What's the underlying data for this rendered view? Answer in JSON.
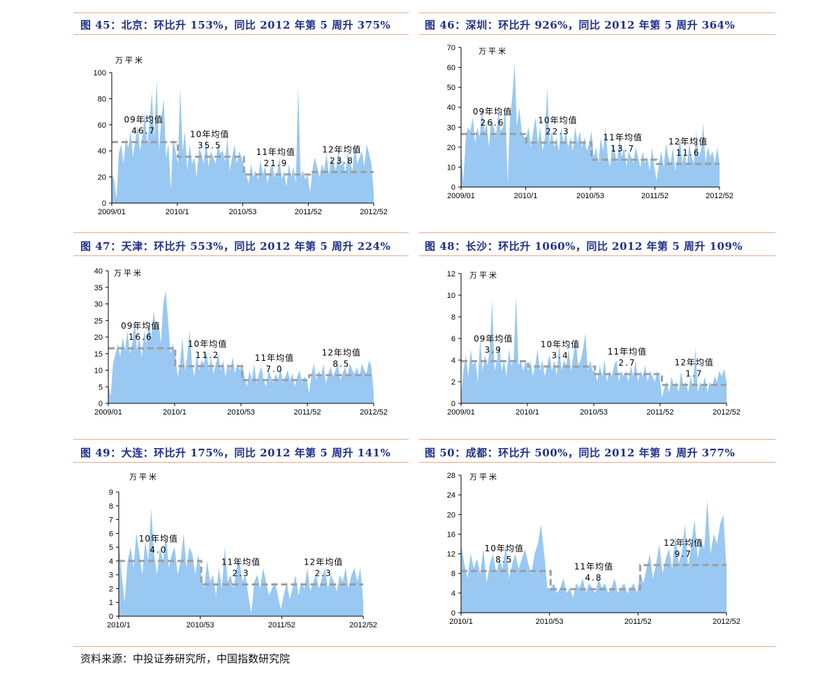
{
  "source": "资料来源：中投证券研究所，中国指数研究院",
  "panels": [
    {
      "title": "图 45：北京：环比升 153%，同比 2012 年第 5 周升 375%"
    },
    {
      "title": "图 46：深圳：环比升 926%，同比 2012 年第 5 周升 364%"
    },
    {
      "title": "图 47：天津：环比升 553%，同比 2012 年第 5 周升 224%"
    },
    {
      "title": "图 48：长沙：环比升 1060%，同比 2012 年第 5 周升 109%"
    },
    {
      "title": "图 49：大连：环比升 175%，同比 2012 年第 5 周升 141%"
    },
    {
      "title": "图 50：成都：环比升 500%，同比 2012 年第 5 周升 377%"
    }
  ],
  "chart_data": [
    {
      "type": "area",
      "ylabel": "万平米",
      "ylim": [
        0,
        100
      ],
      "yticks": [
        0,
        20,
        40,
        60,
        80,
        100
      ],
      "xtick_labels": [
        "2009/01",
        "2010/1",
        "2010/53",
        "2011/52",
        "2012/52"
      ],
      "area_color": "#99c8f2",
      "avg_color": "#9e9e9e",
      "segments": [
        {
          "label": "09年均值",
          "value": 46.7,
          "values": [
            22,
            18,
            3,
            38,
            45,
            30,
            50,
            42,
            55,
            35,
            48,
            60,
            40,
            52,
            70,
            45,
            62,
            85,
            50,
            95,
            40,
            65,
            80,
            35,
            45,
            10,
            50,
            40
          ],
          "label_val": "46.7"
        },
        {
          "label": "10年均值",
          "value": 35.5,
          "values": [
            30,
            88,
            40,
            55,
            25,
            45,
            30,
            35,
            20,
            42,
            38,
            30,
            50,
            28,
            40,
            35,
            30,
            45,
            38,
            40,
            32,
            50,
            25,
            35,
            45,
            30,
            40,
            35
          ],
          "label_val": "35.5"
        },
        {
          "label": "11年均值",
          "value": 21.9,
          "values": [
            28,
            22,
            15,
            30,
            20,
            25,
            18,
            33,
            22,
            28,
            15,
            25,
            30,
            20,
            22,
            35,
            18,
            25,
            12,
            30,
            20,
            28,
            15,
            90,
            20,
            25,
            18,
            22
          ],
          "label_val": "21.9"
        },
        {
          "label": "12年均值",
          "value": 23.8,
          "values": [
            8,
            25,
            35,
            28,
            20,
            30,
            25,
            38,
            22,
            35,
            30,
            25,
            40,
            28,
            33,
            22,
            38,
            30,
            25,
            45,
            30,
            35,
            40,
            28,
            45,
            38,
            30,
            8
          ],
          "label_val": "23.8"
        }
      ]
    },
    {
      "type": "area",
      "ylabel": "万平米",
      "ylim": [
        0,
        70
      ],
      "yticks": [
        0,
        10,
        20,
        30,
        40,
        50,
        60,
        70
      ],
      "xtick_labels": [
        "2009/01",
        "2010/1",
        "2010/53",
        "2011/52",
        "2012/52"
      ],
      "area_color": "#99c8f2",
      "avg_color": "#9e9e9e",
      "segments": [
        {
          "label": "09年均值",
          "value": 26.6,
          "values": [
            18,
            3,
            25,
            30,
            28,
            35,
            22,
            30,
            25,
            40,
            28,
            32,
            20,
            35,
            30,
            25,
            38,
            28,
            30,
            40,
            2,
            35,
            45,
            62,
            30,
            40,
            28,
            25
          ],
          "label_val": "26.6"
        },
        {
          "label": "10年均值",
          "value": 22.3,
          "values": [
            25,
            30,
            20,
            28,
            35,
            22,
            30,
            18,
            25,
            50,
            22,
            28,
            20,
            25,
            18,
            30,
            22,
            28,
            20,
            25,
            18,
            30,
            22,
            28,
            20,
            25,
            18,
            22
          ],
          "label_val": "22.3"
        },
        {
          "label": "11年均值",
          "value": 13.7,
          "values": [
            28,
            15,
            20,
            12,
            25,
            18,
            30,
            15,
            10,
            22,
            18,
            12,
            25,
            15,
            20,
            10,
            18,
            15,
            12,
            20,
            15,
            10,
            18,
            12,
            15,
            8,
            20,
            10
          ],
          "label_val": "13.7"
        },
        {
          "label": "12年均值",
          "value": 11.6,
          "values": [
            3,
            12,
            18,
            10,
            22,
            15,
            12,
            20,
            8,
            15,
            25,
            12,
            18,
            10,
            22,
            15,
            12,
            28,
            15,
            18,
            32,
            12,
            20,
            15,
            18,
            12,
            20,
            12
          ],
          "label_val": "11.6"
        }
      ]
    },
    {
      "type": "area",
      "ylabel": "万平米",
      "ylim": [
        0,
        40
      ],
      "yticks": [
        0,
        5,
        10,
        15,
        20,
        25,
        30,
        35,
        40
      ],
      "xtick_labels": [
        "2009/01",
        "2010/1",
        "2010/53",
        "2011/52",
        "2012/52"
      ],
      "area_color": "#99c8f2",
      "avg_color": "#9e9e9e",
      "segments": [
        {
          "label": "09年均值",
          "value": 16.6,
          "values": [
            6,
            2,
            12,
            15,
            18,
            14,
            20,
            16,
            22,
            15,
            18,
            25,
            16,
            20,
            14,
            22,
            18,
            25,
            20,
            28,
            22,
            25,
            18,
            30,
            34,
            25,
            15,
            18
          ],
          "label_val": "16.6"
        },
        {
          "label": "10年均值",
          "value": 11.2,
          "values": [
            15,
            8,
            12,
            20,
            10,
            14,
            22,
            12,
            8,
            15,
            10,
            13,
            12,
            16,
            10,
            14,
            9,
            12,
            15,
            10,
            13,
            8,
            12,
            10,
            14,
            9,
            12,
            10
          ],
          "label_val": "11.2"
        },
        {
          "label": "11年均值",
          "value": 7.0,
          "values": [
            12,
            8,
            5,
            10,
            7,
            12,
            6,
            9,
            11,
            7,
            5,
            10,
            8,
            6,
            9,
            7,
            11,
            6,
            8,
            10,
            7,
            9,
            5,
            8,
            10,
            6,
            8,
            7
          ],
          "label_val": "7.0"
        },
        {
          "label": "12年均值",
          "value": 8.5,
          "values": [
            3,
            9,
            12,
            7,
            10,
            8,
            12,
            6,
            9,
            11,
            8,
            10,
            12,
            7,
            9,
            11,
            8,
            12,
            10,
            9,
            11,
            8,
            12,
            10,
            9,
            13,
            11,
            3
          ],
          "label_val": "8.5"
        }
      ]
    },
    {
      "type": "area",
      "ylabel": "万平米",
      "ylim": [
        0,
        12
      ],
      "yticks": [
        0,
        2,
        4,
        6,
        8,
        10,
        12
      ],
      "xtick_labels": [
        "2009/01",
        "2010/1",
        "2010/53",
        "2011/52",
        "2012/52"
      ],
      "area_color": "#99c8f2",
      "avg_color": "#9e9e9e",
      "segments": [
        {
          "label": "09年均值",
          "value": 3.9,
          "values": [
            0.5,
            3,
            4.5,
            2.5,
            5,
            3.5,
            4,
            2,
            6,
            3,
            4.5,
            3.5,
            5,
            9.5,
            3,
            4,
            5.5,
            3,
            4,
            2.5,
            5,
            3.5,
            4,
            10,
            3.5,
            4,
            3,
            4
          ],
          "label_val": "3.9"
        },
        {
          "label": "10年均值",
          "value": 3.4,
          "values": [
            3,
            4,
            2.5,
            3.5,
            5,
            3,
            4,
            2.5,
            3.5,
            4.5,
            3,
            4,
            2.5,
            5.5,
            3,
            4,
            3.5,
            5,
            3,
            4.5,
            6,
            3.5,
            4,
            5,
            6.5,
            3,
            4,
            3
          ],
          "label_val": "3.4"
        },
        {
          "label": "11年均值",
          "value": 2.7,
          "values": [
            3,
            2,
            3.5,
            2.5,
            4,
            2,
            3,
            2.5,
            3.5,
            4,
            2,
            3,
            2.5,
            3,
            2,
            3.5,
            2.5,
            4,
            2,
            3,
            2.5,
            3.5,
            2,
            3,
            2.5,
            2,
            3,
            2.5
          ],
          "label_val": "2.7"
        },
        {
          "label": "12年均值",
          "value": 1.7,
          "values": [
            0.5,
            1.5,
            2,
            1,
            2.5,
            1.5,
            2,
            1,
            3,
            1.5,
            2,
            1,
            2.5,
            1.5,
            5.2,
            1,
            2,
            1.5,
            2.5,
            1,
            2,
            1.5,
            2.5,
            2,
            3,
            2.5,
            3.2,
            2
          ],
          "label_val": "1.7"
        }
      ]
    },
    {
      "type": "area",
      "ylabel": "万平米",
      "ylim": [
        0,
        9
      ],
      "yticks": [
        0,
        1,
        2,
        3,
        4,
        5,
        6,
        7,
        8,
        9
      ],
      "xtick_labels": [
        "2010/1",
        "2010/53",
        "2011/52",
        "2012/52"
      ],
      "area_color": "#99c8f2",
      "avg_color": "#9e9e9e",
      "segments": [
        {
          "label": "10年均值",
          "value": 4.0,
          "values": [
            5.5,
            3,
            1,
            4,
            5,
            3.5,
            6,
            4.5,
            3,
            5.5,
            4,
            7.8,
            4.5,
            3,
            5,
            4,
            6,
            3.5,
            4.5,
            5,
            3,
            4,
            6,
            3.5,
            5,
            4.5,
            3,
            4.5
          ],
          "label_val": "4.0"
        },
        {
          "label": "11年均值",
          "value": 2.3,
          "values": [
            3,
            2,
            4,
            2.5,
            3,
            1.5,
            3.5,
            2,
            5,
            2.5,
            3,
            2,
            3.5,
            4,
            2.5,
            3,
            1.5,
            0.2,
            2.5,
            3,
            2,
            3.5,
            2.5,
            1.5,
            2,
            2.5,
            1.5,
            0.5
          ],
          "label_val": "2.3"
        },
        {
          "label": "12年均值",
          "value": 2.3,
          "values": [
            1.5,
            2.5,
            1.2,
            2,
            3,
            1.5,
            2.5,
            2,
            3.5,
            1.8,
            2.5,
            3,
            2,
            2.8,
            3.5,
            2,
            3,
            2.5,
            1.8,
            3,
            2.5,
            3.5,
            2,
            3,
            3.5,
            2.5,
            3.5,
            1
          ],
          "label_val": "2.3"
        }
      ]
    },
    {
      "type": "area",
      "ylabel": "万平米",
      "ylim": [
        0,
        28
      ],
      "yticks": [
        0,
        4,
        8,
        12,
        16,
        20,
        24,
        28
      ],
      "xtick_labels": [
        "2010/1",
        "2010/53",
        "2011/52",
        "2012/52"
      ],
      "area_color": "#99c8f2",
      "avg_color": "#9e9e9e",
      "segments": [
        {
          "label": "10年均值",
          "value": 8.5,
          "values": [
            14,
            10,
            7,
            12,
            9,
            11,
            8,
            13,
            6,
            10,
            12,
            8,
            11,
            9,
            14,
            7,
            10,
            12,
            9,
            11,
            13,
            10,
            8,
            12,
            14,
            18,
            12,
            5
          ],
          "label_val": "8.5"
        },
        {
          "label": "11年均值",
          "value": 4.8,
          "values": [
            5,
            6,
            4,
            5,
            7,
            4,
            5,
            3,
            6,
            5,
            7,
            4,
            6,
            5,
            4,
            7,
            5,
            6,
            4,
            5,
            7,
            4,
            5,
            6,
            4,
            5,
            6,
            4
          ],
          "label_val": "4.8"
        },
        {
          "label": "12年均值",
          "value": 9.7,
          "values": [
            8,
            6,
            9,
            12,
            7,
            10,
            14,
            8,
            11,
            13,
            9,
            16,
            10,
            12,
            18,
            9,
            14,
            19,
            11,
            15,
            13,
            23,
            12,
            16,
            14,
            18,
            20,
            9
          ],
          "label_val": "9.7"
        }
      ]
    }
  ]
}
